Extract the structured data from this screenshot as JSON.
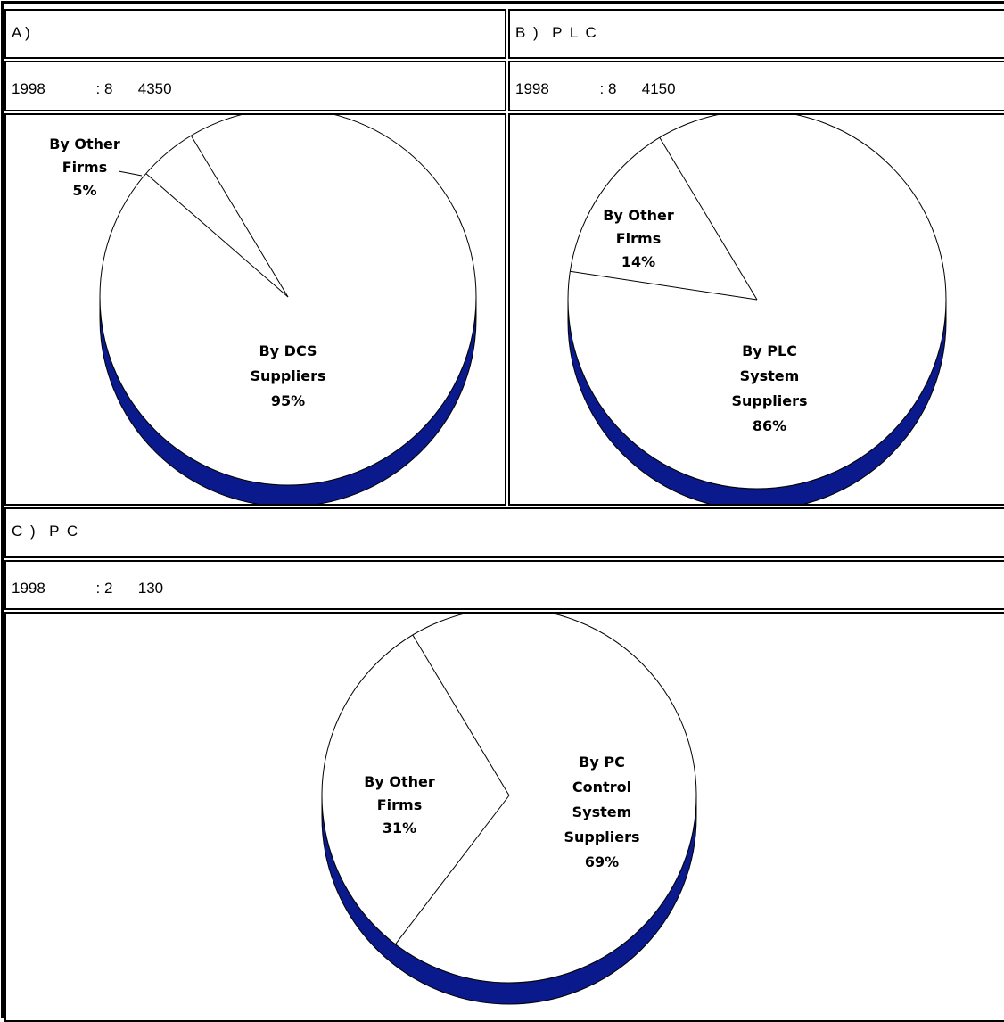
{
  "panel_a": {
    "title": "A )",
    "info": "1998            : 8      4350"
  },
  "panel_b": {
    "title": "B )  P L C",
    "info": "1998            : 8      4150"
  },
  "panel_c": {
    "title": "C )  P C",
    "info": "1998            : 2      130"
  },
  "colors": {
    "pie_edge": "#0a1a8c",
    "pie_fill": "#ffffff",
    "outline": "#000000"
  },
  "chart_data": [
    {
      "type": "pie",
      "title": "",
      "slices": [
        {
          "label": [
            "By Other",
            "Firms",
            "5%"
          ],
          "value": 5
        },
        {
          "label": [
            "By DCS",
            "Suppliers",
            "95%"
          ],
          "value": 95
        }
      ]
    },
    {
      "type": "pie",
      "title": "",
      "slices": [
        {
          "label": [
            "By Other",
            "Firms",
            "14%"
          ],
          "value": 14
        },
        {
          "label": [
            "By PLC",
            "System",
            "Suppliers",
            "86%"
          ],
          "value": 86
        }
      ]
    },
    {
      "type": "pie",
      "title": "",
      "slices": [
        {
          "label": [
            "By Other",
            "Firms",
            "31%"
          ],
          "value": 31
        },
        {
          "label": [
            "By PC",
            "Control",
            "System",
            "Suppliers",
            "69%"
          ],
          "value": 69
        }
      ]
    }
  ]
}
